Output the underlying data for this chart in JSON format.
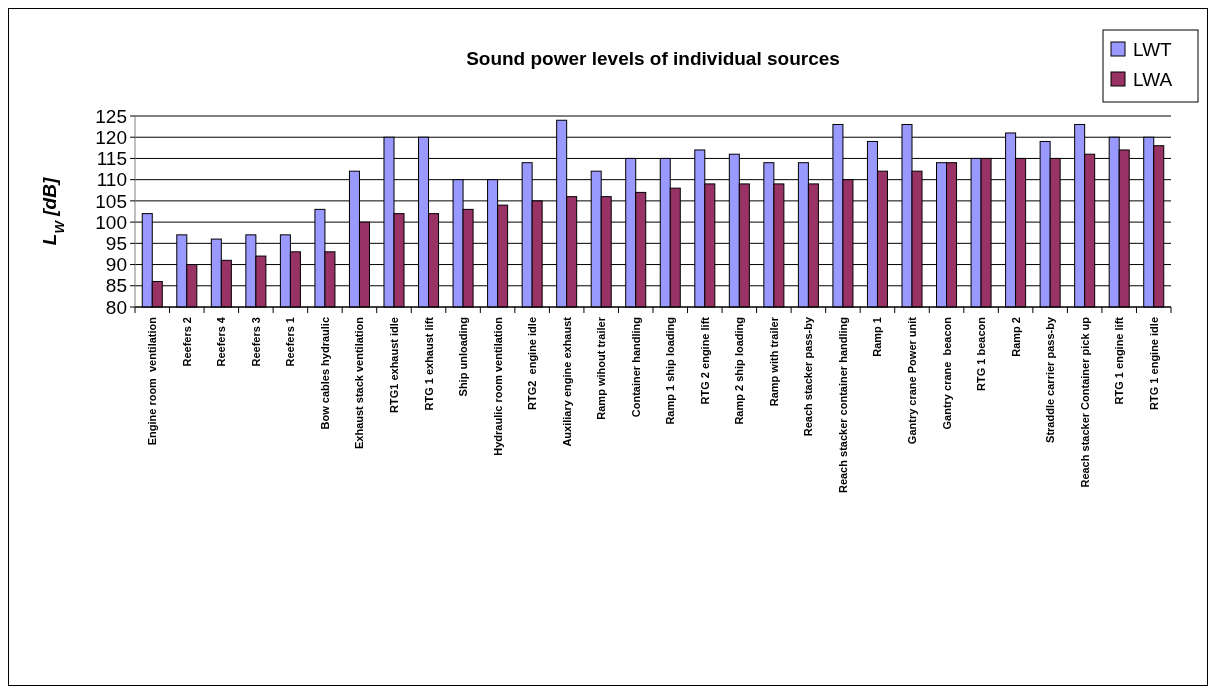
{
  "chart_data": {
    "type": "bar",
    "title": "Sound power levels of individual sources",
    "ylabel": "L$_{W}$ [dB]",
    "categories": [
      "Engine room  ventilation",
      "Reefers 2",
      "Reefers 4",
      "Reefers 3",
      "Reefers 1",
      "Bow cables hydraulic",
      "Exhaust stack ventilation",
      "RTG1 exhaust idle",
      "RTG 1 exhaust lift",
      "Ship unloading",
      "Hydraulic room ventilation",
      "RTG2  engine idle",
      "Auxiliary engine exhaust",
      "Ramp wihout trailer",
      "Container handling",
      "Ramp 1 ship loading",
      "RTG 2 engine lift",
      "Ramp 2 ship loading",
      "Ramp with trailer",
      "Reach stacker pass-by",
      "Reach stacker container handling",
      "Ramp 1",
      "Gantry crane Power unit",
      "Gantry crane  beacon",
      "RTG 1 beacon",
      "Ramp 2",
      "Straddle carrier pass-by",
      "Reach stacker Container pick up",
      "RTG 1 engine lift",
      "RTG 1 engine idle"
    ],
    "series": [
      {
        "name": "LWT",
        "color": "#9999ff",
        "values": [
          102,
          97,
          96,
          97,
          97,
          103,
          112,
          120,
          120,
          110,
          110,
          114,
          124,
          112,
          115,
          115,
          117,
          116,
          114,
          114,
          123,
          119,
          123,
          114,
          115,
          121,
          119,
          123,
          120,
          120
        ]
      },
      {
        "name": "LWA",
        "color": "#993366",
        "values": [
          86,
          90,
          91,
          92,
          93,
          93,
          100,
          102,
          102,
          103,
          104,
          105,
          106,
          106,
          107,
          108,
          109,
          109,
          109,
          109,
          110,
          112,
          112,
          114,
          115,
          115,
          115,
          116,
          117,
          118
        ]
      }
    ],
    "ylim": [
      80,
      125
    ],
    "yticks": [
      80,
      85,
      90,
      95,
      100,
      105,
      110,
      115,
      120,
      125
    ],
    "grid": "y",
    "legend": "top right"
  }
}
